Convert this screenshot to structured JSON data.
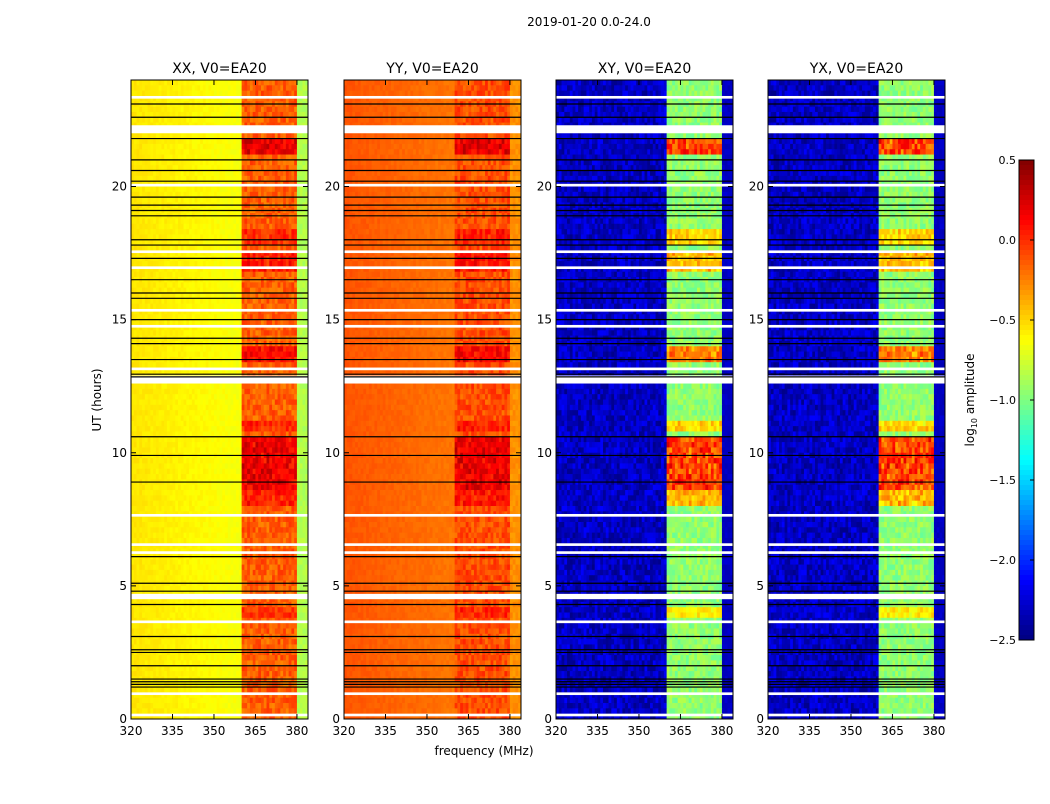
{
  "chart_data": {
    "type": "heatmap",
    "suptitle": "2019-01-20 0.0-24.0",
    "xlabel": "frequency (MHz)",
    "ylabel": "UT (hours)",
    "xlim": [
      320,
      384
    ],
    "ylim": [
      0,
      24
    ],
    "xticks": [
      "320",
      "335",
      "350",
      "365",
      "380"
    ],
    "xtick_values": [
      320,
      335,
      350,
      365,
      380
    ],
    "yticks": [
      "0",
      "5",
      "10",
      "15",
      "20"
    ],
    "ytick_values": [
      0,
      5,
      10,
      15,
      20
    ],
    "colorbar": {
      "label": "log10 amplitude",
      "label_main": "log",
      "label_sub": "10",
      "label_rest": " amplitude",
      "range": [
        -2.5,
        0.5
      ],
      "ticks": [
        "0.5",
        "0.0",
        "−0.5",
        "−1.0",
        "−1.5",
        "−2.0",
        "−2.5"
      ],
      "tick_values": [
        0.5,
        0.0,
        -0.5,
        -1.0,
        -1.5,
        -2.0,
        -2.5
      ],
      "colormap": "jet"
    },
    "subbands_mhz": [
      [
        360.5,
        364.5
      ],
      [
        365.5,
        369.5
      ],
      [
        370.5,
        374.5
      ],
      [
        375.5,
        379.5
      ]
    ],
    "flagged_white_ut": [
      [
        23.3,
        23.4
      ],
      [
        22.0,
        22.3
      ],
      [
        20.0,
        20.1
      ],
      [
        17.5,
        17.6
      ],
      [
        16.9,
        17.0
      ],
      [
        15.3,
        15.4
      ],
      [
        14.7,
        14.8
      ],
      [
        13.1,
        13.2
      ],
      [
        12.6,
        12.9
      ],
      [
        7.6,
        7.7
      ],
      [
        6.5,
        6.6
      ],
      [
        6.2,
        6.3
      ],
      [
        4.5,
        4.7
      ],
      [
        3.6,
        3.7
      ],
      [
        0.9,
        1.0
      ],
      [
        0.1,
        0.2
      ]
    ],
    "flagged_black_ut": [
      23.1,
      22.6,
      21.8,
      21.0,
      20.6,
      20.2,
      19.6,
      19.3,
      19.1,
      18.9,
      18.0,
      17.8,
      17.3,
      16.5,
      16.0,
      15.8,
      15.0,
      14.3,
      14.1,
      13.5,
      12.95,
      12.85,
      10.6,
      9.9,
      8.9,
      6.1,
      5.1,
      4.8,
      4.3,
      3.1,
      2.6,
      2.5,
      2.0,
      1.5,
      1.4,
      1.3,
      1.2
    ],
    "panels": [
      {
        "title": "XX, V0=EA20",
        "base": -0.55,
        "edge": -0.85,
        "band": -0.15,
        "burst_gain": 0.4
      },
      {
        "title": "YY, V0=EA20",
        "base": -0.12,
        "edge": -0.3,
        "band": -0.1,
        "burst_gain": 0.35
      },
      {
        "title": "XY, V0=EA20",
        "base": -2.3,
        "edge": -2.3,
        "band": -0.95,
        "burst_gain": 1.1
      },
      {
        "title": "YX, V0=EA20",
        "base": -2.3,
        "edge": -2.3,
        "band": -0.95,
        "burst_gain": 1.1
      }
    ],
    "bursts_ut": [
      [
        21.3,
        21.8,
        1.0
      ],
      [
        17.8,
        18.4,
        0.5
      ],
      [
        16.8,
        17.5,
        0.6
      ],
      [
        13.5,
        14.0,
        0.8
      ],
      [
        10.8,
        11.2,
        0.5
      ],
      [
        8.7,
        10.6,
        1.0
      ],
      [
        8.0,
        8.5,
        0.6
      ],
      [
        3.8,
        4.3,
        0.4
      ]
    ]
  }
}
